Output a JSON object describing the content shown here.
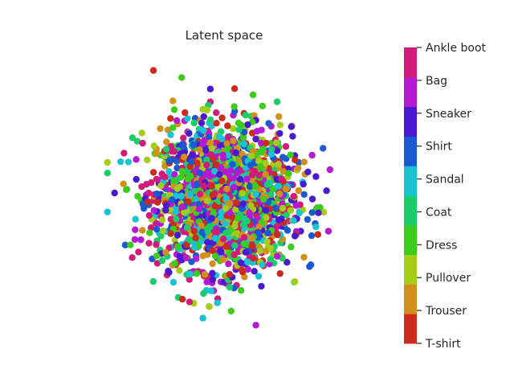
{
  "chart_data": {
    "type": "scatter",
    "title": "Latent space",
    "xlabel": "",
    "ylabel": "",
    "axes_visible": false,
    "grid": false,
    "xlim": [
      -4,
      4
    ],
    "ylim": [
      -4,
      4
    ],
    "marker_radius_note": "filled circles, dense isotropic cloud",
    "colorbar": {
      "placement": "right",
      "labels": [
        "T-shirt",
        "Trouser",
        "Pullover",
        "Dress",
        "Coat",
        "Sandal",
        "Shirt",
        "Sneaker",
        "Bag",
        "Ankle boot"
      ],
      "colors": [
        "#cc2a1a",
        "#d18f1c",
        "#a6cc1a",
        "#3ccc1a",
        "#1acc6a",
        "#1ac3d1",
        "#1a5ad1",
        "#4a1ad1",
        "#b41ad1",
        "#d11a7a"
      ]
    },
    "outliers": [
      {
        "x": -2.0,
        "y": 3.6,
        "class": "T-shirt"
      },
      {
        "x": -1.2,
        "y": 3.4,
        "class": "Dress"
      },
      {
        "x": 2.8,
        "y": 1.4,
        "class": "Shirt"
      },
      {
        "x": 2.9,
        "y": 0.2,
        "class": "Sneaker"
      },
      {
        "x": -3.3,
        "y": 0.7,
        "class": "Coat"
      },
      {
        "x": -3.3,
        "y": -0.4,
        "class": "Sandal"
      },
      {
        "x": -3.3,
        "y": 1.0,
        "class": "Pullover"
      },
      {
        "x": 0.9,
        "y": -3.6,
        "class": "Bag"
      },
      {
        "x": -0.6,
        "y": -3.4,
        "class": "Sandal"
      },
      {
        "x": 0.2,
        "y": -3.2,
        "class": "Dress"
      },
      {
        "x": 2.6,
        "y": 0.6,
        "class": "Sneaker"
      }
    ],
    "cloud": {
      "points_per_class": 230,
      "distribution": "standard normal, centred at 0",
      "spread_x": 0.95,
      "spread_y": 1.0,
      "classes": [
        "T-shirt",
        "Trouser",
        "Pullover",
        "Dress",
        "Coat",
        "Sandal",
        "Shirt",
        "Sneaker",
        "Bag",
        "Ankle boot"
      ]
    }
  }
}
